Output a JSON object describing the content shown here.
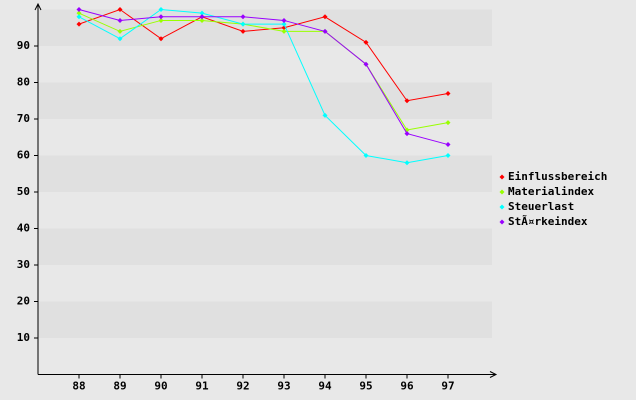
{
  "chart_data": {
    "type": "line",
    "categories": [
      "88",
      "89",
      "90",
      "91",
      "92",
      "93",
      "94",
      "95",
      "96",
      "97"
    ],
    "series": [
      {
        "name": "Einflussbereich",
        "color": "#ff0000",
        "values": [
          96,
          100,
          92,
          98,
          94,
          95,
          98,
          91,
          75,
          77
        ]
      },
      {
        "name": "Materialindex",
        "color": "#99ff00",
        "values": [
          99,
          94,
          97,
          97,
          96,
          94,
          94,
          85,
          67,
          69
        ]
      },
      {
        "name": "Steuerlast",
        "color": "#00ffff",
        "values": [
          98,
          92,
          100,
          99,
          96,
          96,
          71,
          60,
          58,
          60
        ]
      },
      {
        "name": "StÃ¤rkeindex",
        "color": "#9900ff",
        "values": [
          100,
          97,
          98,
          98,
          98,
          97,
          94,
          85,
          66,
          63
        ]
      }
    ],
    "ylim": [
      0,
      100
    ],
    "yticks": [
      10,
      20,
      30,
      40,
      50,
      60,
      70,
      80,
      90
    ],
    "grid": true,
    "legend": "right"
  }
}
